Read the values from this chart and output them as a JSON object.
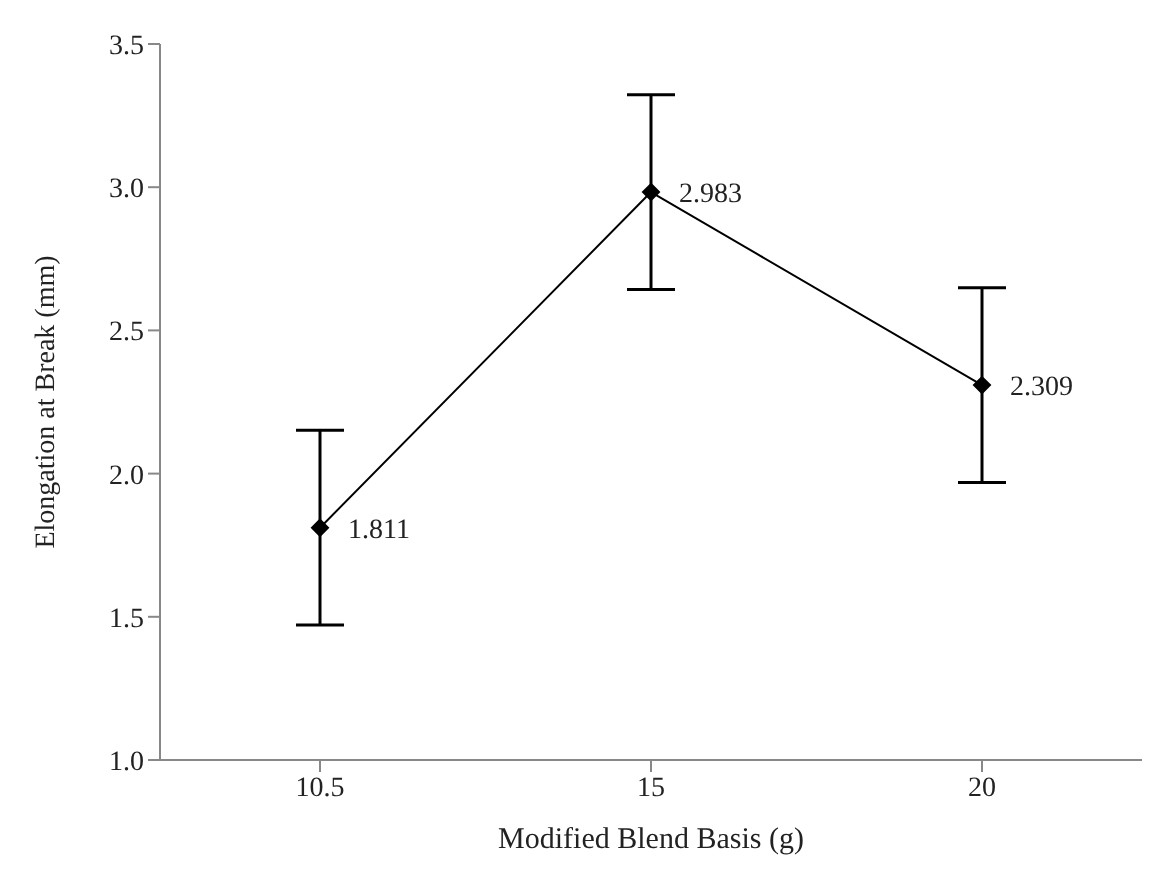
{
  "chart_data": {
    "type": "line",
    "xlabel": "Modified Blend Basis (g)",
    "ylabel": "Elongation at Break (mm)",
    "categories": [
      "10.5",
      "15",
      "20"
    ],
    "series": [
      {
        "color": "#000000",
        "values": [
          1.811,
          2.983,
          2.309
        ],
        "errors": [
          0.34,
          0.34,
          0.34
        ]
      }
    ],
    "ylim": [
      1.0,
      3.5
    ],
    "yticks": [
      {
        "value": 1.0,
        "label": "1.0"
      },
      {
        "value": 1.5,
        "label": "1.5"
      },
      {
        "value": 2.0,
        "label": "2.0"
      },
      {
        "value": 2.5,
        "label": "2.5"
      },
      {
        "value": 3.0,
        "label": "3.0"
      },
      {
        "value": 3.5,
        "label": "3.5"
      }
    ],
    "grid": false,
    "legend": false,
    "marker": "diamond",
    "line_style": "solid",
    "data_labels": true
  }
}
